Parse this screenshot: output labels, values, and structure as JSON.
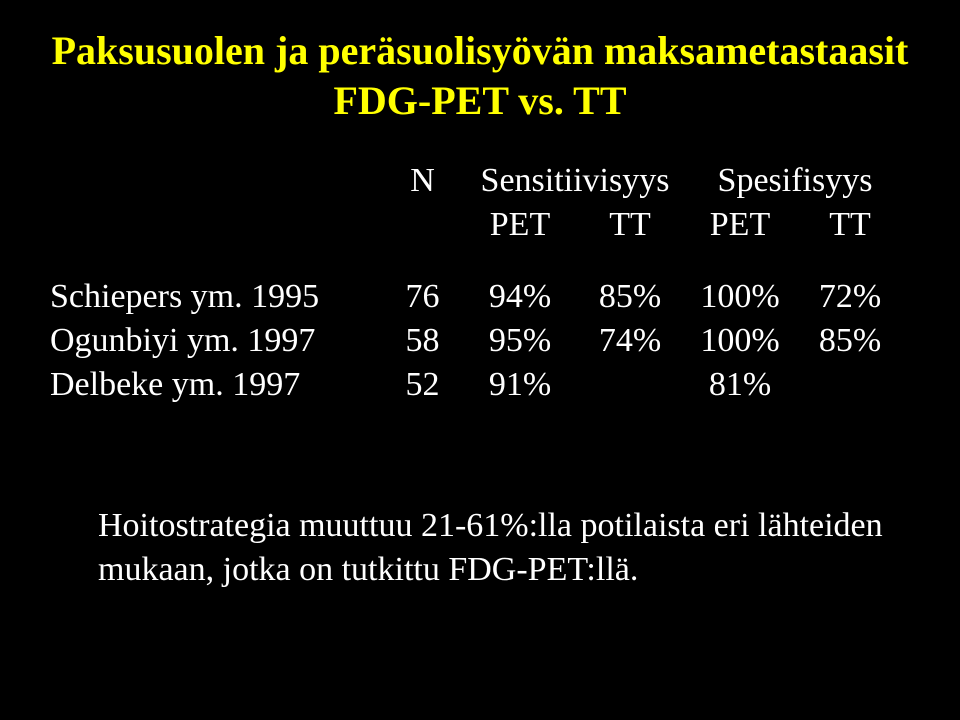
{
  "title_line1": "Paksusuolen ja peräsuolisyövän maksametastaasit",
  "title_line2": "FDG-PET vs. TT",
  "header": {
    "n": "N",
    "sens": "Sensitiivisyys",
    "spec": "Spesifisyys"
  },
  "subheader": {
    "pet": "PET",
    "tt": "TT"
  },
  "rows": [
    {
      "study": "Schiepers ym. 1995",
      "n": "76",
      "sens_pet": "94%",
      "sens_tt": "85%",
      "spec_pet": "100%",
      "spec_tt": "72%"
    },
    {
      "study": "Ogunbiyi ym. 1997",
      "n": "58",
      "sens_pet": "95%",
      "sens_tt": "74%",
      "spec_pet": "100%",
      "spec_tt": "85%"
    },
    {
      "study": "Delbeke ym. 1997",
      "n": "52",
      "sens_pet": "91%",
      "sens_tt": "",
      "spec_pet": "81%",
      "spec_tt": ""
    }
  ],
  "footer": "Hoitostrategia muuttuu 21-61%:lla potilaista eri lähteiden mukaan, jotka on tutkittu FDG-PET:llä.",
  "colors": {
    "background": "#000000",
    "title": "#ffff00",
    "text": "#ffffff"
  },
  "fontsizes": {
    "title_pt": 40,
    "body_pt": 34
  }
}
